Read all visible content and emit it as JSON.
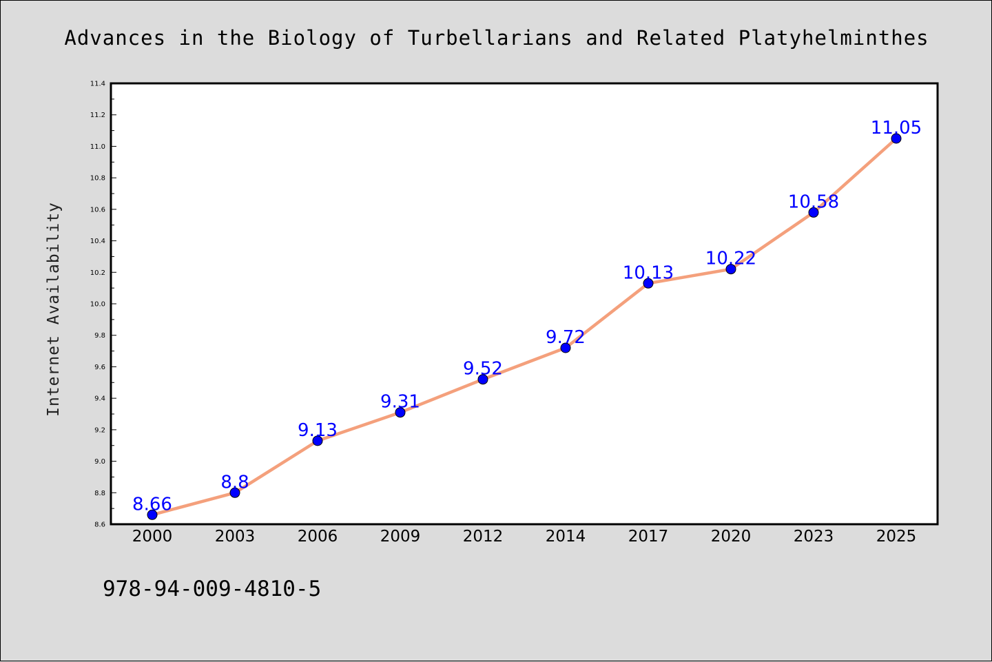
{
  "colors": {
    "background": "#dcdcdc",
    "plot_background": "#ffffff",
    "line": "#f4a07c",
    "marker": "#0000ff",
    "data_label": "#0000ff"
  },
  "isbn": "978-94-009-4810-5",
  "chart_data": {
    "type": "line",
    "title": "Advances in the Biology of Turbellarians and Related Platyhelminthes",
    "xlabel": "",
    "ylabel": "Internet Availability",
    "categories": [
      "2000",
      "2003",
      "2006",
      "2009",
      "2012",
      "2014",
      "2017",
      "2020",
      "2023",
      "2025"
    ],
    "series": [
      {
        "values": [
          8.66,
          8.8,
          9.13,
          9.31,
          9.52,
          9.72,
          10.13,
          10.22,
          10.58,
          11.05
        ],
        "labels": [
          "8.66",
          "8.8",
          "9.13",
          "9.31",
          "9.52",
          "9.72",
          "10.13",
          "10.22",
          "10.58",
          "11.05"
        ]
      }
    ],
    "ylim": [
      8.6,
      11.4
    ],
    "yticks": [
      "8.6",
      "8.8",
      "9.0",
      "9.2",
      "9.4",
      "9.6",
      "9.8",
      "10.0",
      "10.2",
      "10.4",
      "10.6",
      "10.8",
      "11.0",
      "11.2",
      "11.4"
    ],
    "grid": false,
    "legend": "none"
  }
}
